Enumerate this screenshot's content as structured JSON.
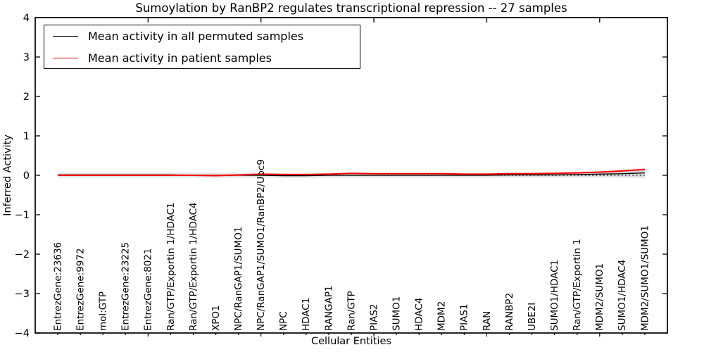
{
  "chart_data": {
    "type": "line",
    "title": "Sumoylation by RanBP2 regulates transcriptional repression -- 27 samples",
    "xlabel": "Cellular Entities",
    "ylabel": "Inferred Activity",
    "ylim": [
      -4,
      4
    ],
    "yticks": [
      4,
      3,
      2,
      1,
      0,
      -1,
      -2,
      -3,
      -4
    ],
    "top_axis_ticks": [
      5,
      10,
      15,
      20,
      25
    ],
    "xtick_rotation": 90,
    "grid": false,
    "legend_position": "upper left",
    "zero_line": {
      "y": 0,
      "style": "dotted",
      "color": "#000000"
    },
    "categories": [
      "EntrezGene:23636",
      "EntrezGene:9972",
      "mol:GTP",
      "EntrezGene:23225",
      "EntrezGene:8021",
      "Ran/GTP/Exportin 1/HDAC1",
      "Ran/GTP/Exportin 1/HDAC4",
      "XPO1",
      "NPC/RanGAP1/SUMO1",
      "NPC/RanGAP1/SUMO1/RanBP2/Ubc9",
      "NPC",
      "HDAC1",
      "RANGAP1",
      "Ran/GTP",
      "PIAS2",
      "SUMO1",
      "HDAC4",
      "MDM2",
      "PIAS1",
      "RAN",
      "RANBP2",
      "UBE2I",
      "SUMO1/HDAC1",
      "Ran/GTP/Exportin 1",
      "MDM2/SUMO1",
      "SUMO1/HDAC4",
      "MDM2/SUMO1/SUMO1"
    ],
    "series": [
      {
        "name": "Mean activity in all permuted samples",
        "color": "#000000",
        "values": [
          0.01,
          0.01,
          0.01,
          0.01,
          0.01,
          0.01,
          0.0,
          0.0,
          0.0,
          0.0,
          -0.01,
          -0.01,
          0.0,
          0.0,
          0.0,
          0.0,
          0.0,
          0.0,
          0.0,
          0.0,
          0.01,
          0.01,
          0.01,
          0.02,
          0.03,
          0.04,
          0.06
        ]
      },
      {
        "name": "Mean activity in patient samples",
        "color": "#ff0000",
        "values": [
          0.0,
          0.0,
          0.0,
          0.0,
          0.0,
          0.0,
          0.0,
          -0.01,
          0.01,
          0.03,
          0.02,
          0.02,
          0.03,
          0.05,
          0.04,
          0.04,
          0.04,
          0.04,
          0.03,
          0.03,
          0.04,
          0.04,
          0.05,
          0.06,
          0.08,
          0.11,
          0.15
        ]
      }
    ],
    "band": {
      "name": "permuted samples spread",
      "color": "#c9c9c9",
      "upper": [
        0.06,
        0.06,
        0.06,
        0.06,
        0.06,
        0.06,
        0.05,
        0.05,
        0.05,
        0.05,
        0.04,
        0.04,
        0.05,
        0.05,
        0.05,
        0.05,
        0.05,
        0.05,
        0.05,
        0.05,
        0.06,
        0.06,
        0.07,
        0.08,
        0.1,
        0.13,
        0.18
      ],
      "lower": [
        -0.05,
        -0.05,
        -0.05,
        -0.05,
        -0.05,
        -0.05,
        -0.05,
        -0.05,
        -0.05,
        -0.05,
        -0.06,
        -0.06,
        -0.05,
        -0.05,
        -0.05,
        -0.05,
        -0.05,
        -0.05,
        -0.05,
        -0.05,
        -0.04,
        -0.04,
        -0.04,
        -0.04,
        -0.04,
        -0.05,
        -0.06
      ]
    }
  }
}
